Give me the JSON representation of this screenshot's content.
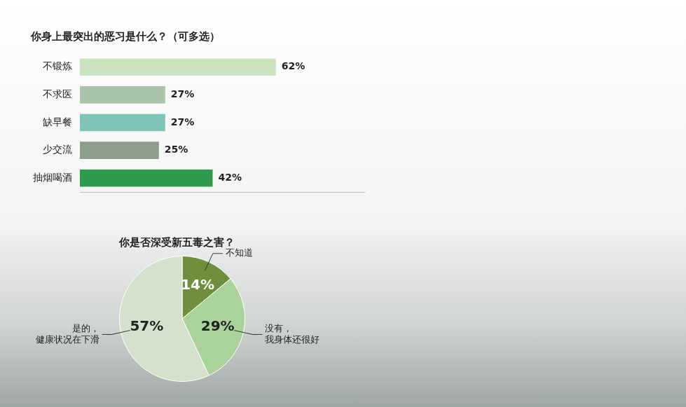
{
  "chart_data": [
    {
      "type": "bar",
      "title": "你身上最突出的恶习是什么？（可多选）",
      "orientation": "horizontal",
      "categories": [
        "不锻炼",
        "不求医",
        "缺早餐",
        "少交流",
        "抽烟喝酒"
      ],
      "values": [
        62,
        27,
        27,
        25,
        42
      ],
      "value_labels": [
        "62%",
        "27%",
        "27%",
        "25%",
        "42%"
      ],
      "colors": [
        "#c9e3bf",
        "#a9c4a9",
        "#7fc4b8",
        "#8a9e8a",
        "#2e9b4c"
      ],
      "xlim": [
        0,
        90
      ],
      "tick_labels": "y",
      "grid": false,
      "data_labels": true
    },
    {
      "type": "pie",
      "title": "你是否深受新五毒之害？",
      "categories": [
        "不知道",
        "没有，我身体还很好",
        "是的，健康状况在下滑"
      ],
      "values": [
        14,
        29,
        57
      ],
      "value_labels": [
        "14%",
        "29%",
        "57%"
      ],
      "colors": [
        "#6e8f3c",
        "#a9d39a",
        "#d4e2cc"
      ],
      "data_labels": true
    }
  ]
}
